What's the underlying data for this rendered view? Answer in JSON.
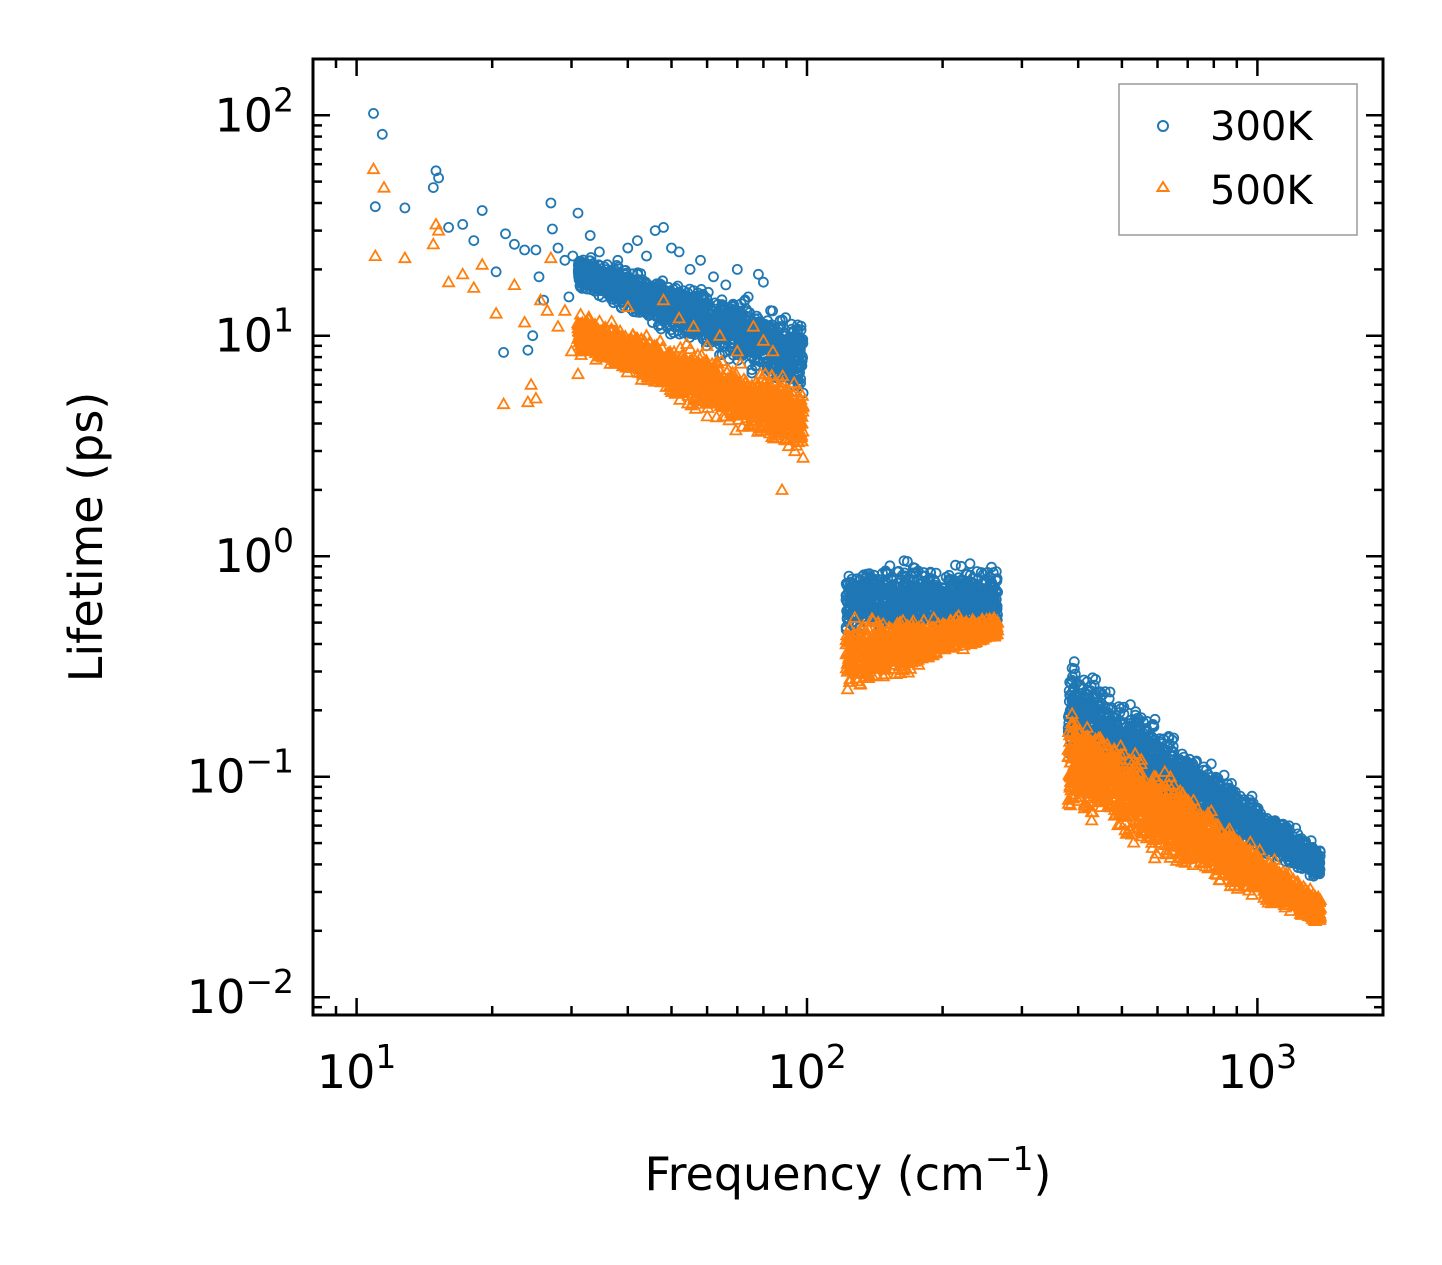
{
  "chart_data": {
    "type": "scatter",
    "title": "",
    "xlabel": {
      "base": "Frequency (cm",
      "sup": "−1",
      "tail": ")"
    },
    "ylabel": "Lifetime (ps)",
    "xscale": "log",
    "yscale": "log",
    "xlim": [
      8,
      1900
    ],
    "ylim": [
      0.0083,
      180
    ],
    "xticks": [
      {
        "value": 10,
        "base": "10",
        "exp": "1"
      },
      {
        "value": 100,
        "base": "10",
        "exp": "2"
      },
      {
        "value": 1000,
        "base": "10",
        "exp": "3"
      }
    ],
    "yticks": [
      {
        "value": 0.01,
        "base": "10",
        "exp": "−2"
      },
      {
        "value": 0.1,
        "base": "10",
        "exp": "−1"
      },
      {
        "value": 1,
        "base": "10",
        "exp": "0"
      },
      {
        "value": 10,
        "base": "10",
        "exp": "1"
      },
      {
        "value": 100,
        "base": "10",
        "exp": "2"
      }
    ],
    "legend": {
      "placement": "top-right"
    },
    "colors": {
      "series_300K": "#1f77b4",
      "series_500K": "#ff7f0e"
    },
    "series": [
      {
        "name": "300K",
        "marker": "circle",
        "color": "#1f77b4",
        "points": [
          [
            10.9,
            102
          ],
          [
            11.0,
            38.5
          ],
          [
            11.4,
            82
          ],
          [
            12.8,
            38
          ],
          [
            14.8,
            47
          ],
          [
            15.0,
            56
          ],
          [
            15.2,
            52
          ],
          [
            16.0,
            31
          ],
          [
            17.2,
            32
          ],
          [
            18.2,
            27
          ],
          [
            19.0,
            37
          ],
          [
            20.4,
            19.5
          ],
          [
            21.2,
            8.4
          ],
          [
            21.4,
            29
          ],
          [
            22.4,
            26
          ],
          [
            23.6,
            24.5
          ],
          [
            24.0,
            8.6
          ],
          [
            24.6,
            10
          ],
          [
            25.0,
            24.5
          ],
          [
            25.4,
            18.5
          ],
          [
            26.0,
            14.5
          ],
          [
            27.0,
            40
          ],
          [
            27.2,
            30.5
          ],
          [
            28.0,
            25
          ],
          [
            29.0,
            22
          ],
          [
            29.6,
            15
          ],
          [
            30.2,
            23
          ],
          [
            31.0,
            36
          ],
          [
            32.0,
            19.5
          ],
          [
            33.0,
            28.5
          ],
          [
            34.6,
            24
          ],
          [
            36.0,
            21
          ],
          [
            38.0,
            22
          ],
          [
            40.0,
            25
          ],
          [
            42.0,
            27
          ],
          [
            44.0,
            23
          ],
          [
            46.0,
            30
          ],
          [
            48.0,
            31
          ],
          [
            50.0,
            25
          ],
          [
            52.0,
            24
          ],
          [
            55.0,
            20
          ],
          [
            58.0,
            22
          ],
          [
            62.0,
            18.5
          ],
          [
            66.0,
            17
          ],
          [
            70.0,
            20
          ],
          [
            74.0,
            15
          ],
          [
            78.0,
            19
          ],
          [
            80.0,
            17.5
          ],
          [
            83.0,
            13
          ],
          [
            87.0,
            11
          ],
          [
            90.0,
            8.5
          ],
          [
            94.0,
            6.5
          ],
          [
            98.0,
            5.5
          ]
        ],
        "bands": [
          {
            "x": [
              31,
              98
            ],
            "low": [
              16,
              4.9
            ],
            "high": [
              24,
              13
            ],
            "n": 1500
          },
          {
            "x": [
              122,
              265
            ],
            "low": [
              0.4,
              0.4
            ],
            "high": [
              1.0,
              1.0
            ],
            "n": 900
          },
          {
            "x": [
              380,
              1380
            ],
            "low": [
              0.1,
              0.032
            ],
            "high": [
              0.4,
              0.05
            ],
            "n": 1700
          }
        ]
      },
      {
        "name": "500K",
        "marker": "triangle",
        "color": "#ff7f0e",
        "points": [
          [
            10.9,
            57
          ],
          [
            11.0,
            23
          ],
          [
            11.5,
            47
          ],
          [
            12.8,
            22.5
          ],
          [
            14.8,
            26
          ],
          [
            15.0,
            32
          ],
          [
            15.2,
            30
          ],
          [
            16.0,
            17.5
          ],
          [
            17.2,
            19
          ],
          [
            18.2,
            16.5
          ],
          [
            19.0,
            21
          ],
          [
            20.4,
            12.6
          ],
          [
            21.2,
            4.9
          ],
          [
            22.4,
            17
          ],
          [
            23.6,
            11.5
          ],
          [
            24.0,
            5.0
          ],
          [
            24.4,
            6.0
          ],
          [
            25.0,
            5.2
          ],
          [
            25.6,
            14.5
          ],
          [
            26.5,
            13
          ],
          [
            27.0,
            22.5
          ],
          [
            28.0,
            11
          ],
          [
            29.0,
            13
          ],
          [
            30.0,
            8.5
          ],
          [
            31.0,
            6.7
          ],
          [
            32.0,
            9.0
          ],
          [
            34.0,
            7.8
          ],
          [
            36.0,
            10.5
          ],
          [
            40.0,
            13.5
          ],
          [
            44.0,
            10
          ],
          [
            48.0,
            14.5
          ],
          [
            52.0,
            12
          ],
          [
            56.0,
            11
          ],
          [
            60.0,
            9.0
          ],
          [
            64.0,
            10
          ],
          [
            70.0,
            8.5
          ],
          [
            76.0,
            11
          ],
          [
            80.0,
            9.5
          ],
          [
            84.0,
            8.5
          ],
          [
            88.0,
            2.0
          ],
          [
            94.0,
            3.0
          ],
          [
            98.0,
            2.8
          ]
        ],
        "bands": [
          {
            "x": [
              31,
              98
            ],
            "low": [
              8,
              2.6
            ],
            "high": [
              13,
              6.5
            ],
            "n": 1500
          },
          {
            "x": [
              122,
              265
            ],
            "low": [
              0.22,
              0.42
            ],
            "high": [
              0.55,
              0.55
            ],
            "n": 900
          },
          {
            "x": [
              380,
              1380
            ],
            "low": [
              0.06,
              0.02
            ],
            "high": [
              0.25,
              0.03
            ],
            "n": 1700
          }
        ]
      }
    ]
  }
}
